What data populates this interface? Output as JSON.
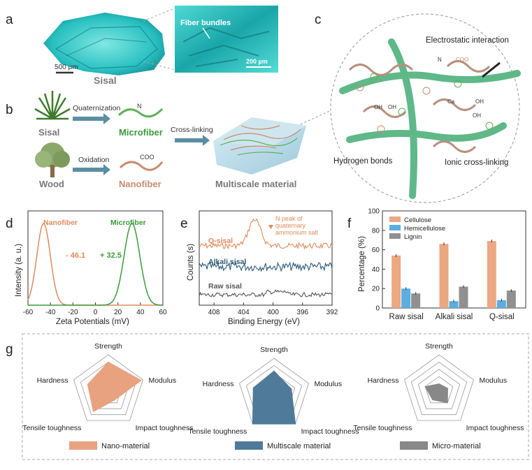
{
  "panels": {
    "a": "a",
    "b": "b",
    "c": "c",
    "d": "d",
    "e": "e",
    "f": "f",
    "g": "g"
  },
  "a": {
    "sample_label": "Sisal",
    "scale_left": "500 µm",
    "inset_label": "Fiber bundles",
    "scale_right": "200 µm"
  },
  "b": {
    "sisal": "Sisal",
    "wood": "Wood",
    "step1": "Quaternization",
    "step2": "Oxidation",
    "step3": "Cross-linking",
    "product1": "Microfiber",
    "product2": "Nanofiber",
    "product3": "Multiscale material",
    "group1": "N",
    "group2": "COO"
  },
  "c": {
    "electrostatic": "Electrostatic interaction",
    "hydrogen": "Hydrogen bonds",
    "ionic": "Ionic cross-linking",
    "ammonium": "N",
    "carboxyl": "COO",
    "oh": "OH",
    "ca": "Ca"
  },
  "chart_data": [
    {
      "type": "line",
      "panel": "d",
      "xlabel": "Zeta Potentials (mV)",
      "ylabel": "Intensity (a. u.)",
      "xlim": [
        -60,
        60
      ],
      "xticks": [
        -60,
        -40,
        -20,
        0,
        20,
        40,
        60
      ],
      "series": [
        {
          "name": "Nanofiber",
          "peak": -46.1,
          "width": 6,
          "color": "#e08a5a",
          "label": "- 46.1"
        },
        {
          "name": "Microfiber",
          "peak": 32.5,
          "width": 7,
          "color": "#3a9a3a",
          "label": "+ 32.5"
        }
      ]
    },
    {
      "type": "line",
      "panel": "e",
      "xlabel": "Binding Energy (eV)",
      "ylabel": "Counts (s)",
      "xlim": [
        410,
        392
      ],
      "xticks": [
        408,
        404,
        400,
        396,
        392
      ],
      "annotation": "N peak of quaternary ammonium salt",
      "series": [
        {
          "name": "Q-sisal",
          "color": "#e08a5a"
        },
        {
          "name": "Alkali sisal",
          "color": "#2a5a7a"
        },
        {
          "name": "Raw sisal",
          "color": "#555555"
        }
      ]
    },
    {
      "type": "bar",
      "panel": "f",
      "ylabel": "Percentage (%)",
      "ylim": [
        0,
        100
      ],
      "yticks": [
        0,
        20,
        40,
        60,
        80,
        100
      ],
      "categories": [
        "Raw sisal",
        "Alkali sisal",
        "Q-sisal"
      ],
      "series": [
        {
          "name": "Cellulose",
          "values": [
            54,
            66,
            69
          ],
          "color": "#eba882"
        },
        {
          "name": "Hemicellulose",
          "values": [
            20,
            7,
            8
          ],
          "color": "#5aaee0"
        },
        {
          "name": "Lignin",
          "values": [
            15,
            22,
            18
          ],
          "color": "#909090"
        }
      ]
    },
    {
      "type": "radar",
      "panel": "g",
      "axes": [
        "Strength",
        "Modulus",
        "Impact toughness",
        "Tensile toughness",
        "Hardness"
      ],
      "series": [
        {
          "name": "Nano-material",
          "values": [
            0.8,
            0.95,
            0.3,
            0.7,
            0.6
          ],
          "color": "#e8a27f"
        },
        {
          "name": "Multiscale material",
          "values": [
            0.65,
            0.5,
            1.0,
            1.0,
            0.6
          ],
          "color": "#4f7a99"
        },
        {
          "name": "Micro-material",
          "values": [
            0.2,
            0.25,
            0.4,
            0.3,
            0.4
          ],
          "color": "#888888"
        }
      ]
    }
  ]
}
